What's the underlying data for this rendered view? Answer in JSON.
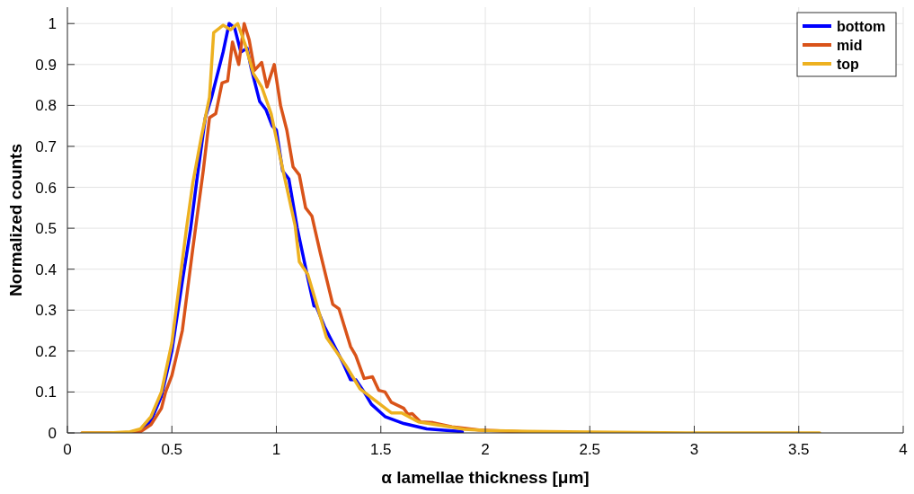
{
  "chart_data": {
    "type": "line",
    "xlabel": "α lamellae thickness [μm]",
    "ylabel": "Normalized counts",
    "xlim": [
      0,
      4
    ],
    "ylim": [
      0,
      1.04
    ],
    "xticks": [
      0,
      0.5,
      1,
      1.5,
      2,
      2.5,
      3,
      3.5,
      4
    ],
    "yticks": [
      0,
      0.1,
      0.2,
      0.3,
      0.4,
      0.5,
      0.6,
      0.7,
      0.8,
      0.9,
      1
    ],
    "grid": true,
    "legend": "top right",
    "line_style": "solid",
    "series": [
      {
        "name": "bottom",
        "color": "#0000ff",
        "x": [
          0.35,
          0.4,
          0.45,
          0.5,
          0.55,
          0.59,
          0.62,
          0.66,
          0.69,
          0.72,
          0.745,
          0.774,
          0.8,
          0.83,
          0.86,
          0.88,
          0.92,
          0.95,
          0.98,
          1.0,
          1.03,
          1.06,
          1.1,
          1.15,
          1.18,
          1.19,
          1.23,
          1.28,
          1.32,
          1.355,
          1.38,
          1.42,
          1.455,
          1.52,
          1.61,
          1.72,
          1.89
        ],
        "values": [
          0.005,
          0.03,
          0.09,
          0.2,
          0.37,
          0.5,
          0.62,
          0.77,
          0.82,
          0.88,
          0.93,
          1.0,
          0.99,
          0.93,
          0.94,
          0.89,
          0.81,
          0.79,
          0.75,
          0.74,
          0.64,
          0.62,
          0.5,
          0.38,
          0.31,
          0.31,
          0.26,
          0.21,
          0.17,
          0.13,
          0.13,
          0.1,
          0.07,
          0.04,
          0.023,
          0.01,
          0.003
        ]
      },
      {
        "name": "mid",
        "color": "#d95319",
        "x": [
          0.07,
          0.2,
          0.3,
          0.35,
          0.4,
          0.45,
          0.47,
          0.5,
          0.55,
          0.6,
          0.65,
          0.68,
          0.71,
          0.74,
          0.767,
          0.79,
          0.82,
          0.846,
          0.87,
          0.896,
          0.93,
          0.955,
          0.99,
          1.02,
          1.05,
          1.08,
          1.11,
          1.14,
          1.17,
          1.21,
          1.27,
          1.3,
          1.355,
          1.38,
          1.42,
          1.46,
          1.49,
          1.52,
          1.55,
          1.61,
          1.63,
          1.65,
          1.69,
          1.75,
          1.84,
          1.97,
          2.2
        ],
        "values": [
          0,
          0,
          0,
          0.003,
          0.02,
          0.06,
          0.1,
          0.14,
          0.25,
          0.45,
          0.64,
          0.77,
          0.78,
          0.855,
          0.86,
          0.955,
          0.9,
          1.0,
          0.96,
          0.886,
          0.905,
          0.845,
          0.9,
          0.8,
          0.74,
          0.65,
          0.63,
          0.55,
          0.53,
          0.44,
          0.314,
          0.303,
          0.211,
          0.189,
          0.133,
          0.137,
          0.104,
          0.1,
          0.075,
          0.06,
          0.045,
          0.047,
          0.027,
          0.025,
          0.015,
          0.007,
          0.002
        ]
      },
      {
        "name": "top",
        "color": "#edb120",
        "x": [
          0.07,
          0.2,
          0.3,
          0.35,
          0.4,
          0.45,
          0.5,
          0.57,
          0.6,
          0.64,
          0.68,
          0.7,
          0.745,
          0.78,
          0.815,
          0.85,
          0.89,
          0.93,
          0.975,
          1.03,
          1.09,
          1.11,
          1.15,
          1.24,
          1.33,
          1.4,
          1.55,
          1.6,
          1.68,
          1.9,
          2.0,
          2.2,
          2.5,
          3.0,
          3.6
        ],
        "values": [
          0,
          0,
          0.003,
          0.01,
          0.04,
          0.1,
          0.22,
          0.5,
          0.61,
          0.72,
          0.82,
          0.978,
          0.996,
          0.985,
          1.0,
          0.95,
          0.878,
          0.845,
          0.78,
          0.646,
          0.506,
          0.418,
          0.388,
          0.233,
          0.167,
          0.108,
          0.049,
          0.049,
          0.027,
          0.009,
          0.006,
          0.004,
          0.002,
          0,
          0
        ]
      }
    ]
  }
}
